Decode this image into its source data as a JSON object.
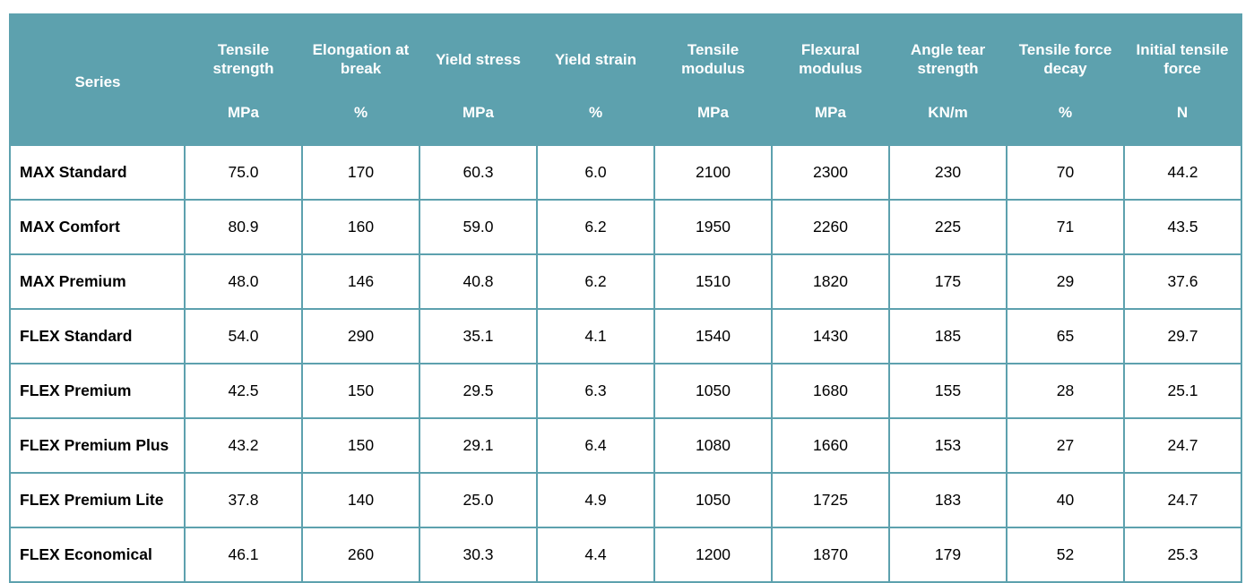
{
  "header": {
    "series_label": "Series",
    "columns": [
      {
        "name": "Tensile strength",
        "unit": "MPa"
      },
      {
        "name": "Elongation at break",
        "unit": "%"
      },
      {
        "name": "Yield stress",
        "unit": "MPa"
      },
      {
        "name": "Yield strain",
        "unit": "%"
      },
      {
        "name": "Tensile modulus",
        "unit": "MPa"
      },
      {
        "name": "Flexural modulus",
        "unit": "MPa"
      },
      {
        "name": "Angle tear strength",
        "unit": "KN/m"
      },
      {
        "name": "Tensile force decay",
        "unit": "%"
      },
      {
        "name": "Initial tensile force",
        "unit": "N"
      }
    ]
  },
  "rows": [
    {
      "series": "MAX Standard",
      "values": [
        "75.0",
        "170",
        "60.3",
        "6.0",
        "2100",
        "2300",
        "230",
        "70",
        "44.2"
      ]
    },
    {
      "series": "MAX Comfort",
      "values": [
        "80.9",
        "160",
        "59.0",
        "6.2",
        "1950",
        "2260",
        "225",
        "71",
        "43.5"
      ]
    },
    {
      "series": "MAX Premium",
      "values": [
        "48.0",
        "146",
        "40.8",
        "6.2",
        "1510",
        "1820",
        "175",
        "29",
        "37.6"
      ]
    },
    {
      "series": "FLEX Standard",
      "values": [
        "54.0",
        "290",
        "35.1",
        "4.1",
        "1540",
        "1430",
        "185",
        "65",
        "29.7"
      ]
    },
    {
      "series": "FLEX Premium",
      "values": [
        "42.5",
        "150",
        "29.5",
        "6.3",
        "1050",
        "1680",
        "155",
        "28",
        "25.1"
      ]
    },
    {
      "series": "FLEX Premium Plus",
      "values": [
        "43.2",
        "150",
        "29.1",
        "6.4",
        "1080",
        "1660",
        "153",
        "27",
        "24.7"
      ]
    },
    {
      "series": "FLEX Premium Lite",
      "values": [
        "37.8",
        "140",
        "25.0",
        "4.9",
        "1050",
        "1725",
        "183",
        "40",
        "24.7"
      ]
    },
    {
      "series": "FLEX Economical",
      "values": [
        "46.1",
        "260",
        "30.3",
        "4.4",
        "1200",
        "1870",
        "179",
        "52",
        "25.3"
      ]
    }
  ],
  "colors": {
    "header_bg": "#5da1ae",
    "header_text": "#ffffff",
    "border": "#5da1ae"
  }
}
